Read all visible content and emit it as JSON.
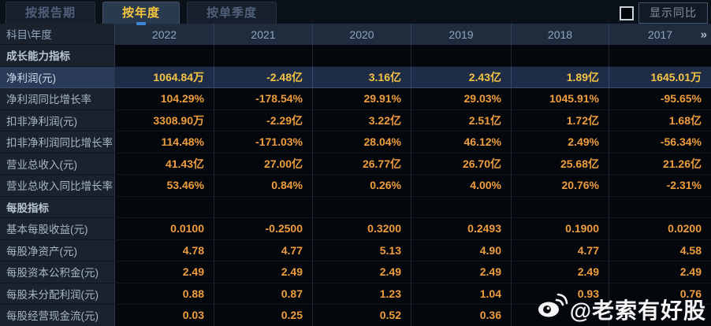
{
  "tabs": [
    {
      "label": "按报告期",
      "active": false
    },
    {
      "label": "按年度",
      "active": true
    },
    {
      "label": "按单季度",
      "active": false
    }
  ],
  "controls": {
    "show_yoy_checkbox_checked": false,
    "show_yoy_label": "显示同比"
  },
  "table": {
    "corner_label": "科目\\年度",
    "years": [
      "2022",
      "2021",
      "2020",
      "2019",
      "2018",
      "2017"
    ],
    "more_icon": "»",
    "rows": [
      {
        "type": "section",
        "label": "成长能力指标",
        "values": [
          "",
          "",
          "",
          "",
          "",
          ""
        ]
      },
      {
        "type": "data",
        "highlight": true,
        "label": "净利润(元)",
        "values": [
          "1064.84万",
          "-2.48亿",
          "3.16亿",
          "2.43亿",
          "1.89亿",
          "1645.01万"
        ]
      },
      {
        "type": "data",
        "label": "净利润同比增长率",
        "values": [
          "104.29%",
          "-178.54%",
          "29.91%",
          "29.03%",
          "1045.91%",
          "-95.65%"
        ]
      },
      {
        "type": "data",
        "label": "扣非净利润(元)",
        "values": [
          "3308.90万",
          "-2.29亿",
          "3.22亿",
          "2.51亿",
          "1.72亿",
          "1.68亿"
        ]
      },
      {
        "type": "data",
        "label": "扣非净利润同比增长率",
        "values": [
          "114.48%",
          "-171.03%",
          "28.04%",
          "46.12%",
          "2.49%",
          "-56.34%"
        ]
      },
      {
        "type": "data",
        "label": "营业总收入(元)",
        "values": [
          "41.43亿",
          "27.00亿",
          "26.77亿",
          "26.70亿",
          "25.68亿",
          "21.26亿"
        ]
      },
      {
        "type": "data",
        "label": "营业总收入同比增长率",
        "values": [
          "53.46%",
          "0.84%",
          "0.26%",
          "4.00%",
          "20.76%",
          "-2.31%"
        ]
      },
      {
        "type": "section",
        "label": "每股指标",
        "values": [
          "",
          "",
          "",
          "",
          "",
          ""
        ]
      },
      {
        "type": "data",
        "label": "基本每股收益(元)",
        "values": [
          "0.0100",
          "-0.2500",
          "0.3200",
          "0.2493",
          "0.1900",
          "0.0200"
        ]
      },
      {
        "type": "data",
        "label": "每股净资产(元)",
        "values": [
          "4.78",
          "4.77",
          "5.13",
          "4.90",
          "4.77",
          "4.58"
        ]
      },
      {
        "type": "data",
        "label": "每股资本公积金(元)",
        "values": [
          "2.49",
          "2.49",
          "2.49",
          "2.49",
          "2.49",
          "2.49"
        ]
      },
      {
        "type": "data",
        "label": "每股未分配利润(元)",
        "values": [
          "0.88",
          "0.87",
          "1.23",
          "1.04",
          "0.93",
          "0.76"
        ]
      },
      {
        "type": "data",
        "label": "每股经营现金流(元)",
        "values": [
          "0.03",
          "0.25",
          "0.52",
          "0.36",
          "",
          ""
        ]
      }
    ]
  },
  "watermark": {
    "icon": "weibo-icon",
    "handle": "@老索有好股"
  },
  "colors": {
    "tab_active_text": "#f6c740",
    "tab_inactive_text": "#50607a",
    "value_orange": "#ef9d3e",
    "highlight_value_gold": "#f4c445",
    "highlight_row_bg": "#1e2c47",
    "header_row_bg": "#1f2c3d",
    "label_column_bg": "#1a222d",
    "active_tab_indicator_blue": "#3f86d8",
    "watermark_white": "#ffffff"
  }
}
